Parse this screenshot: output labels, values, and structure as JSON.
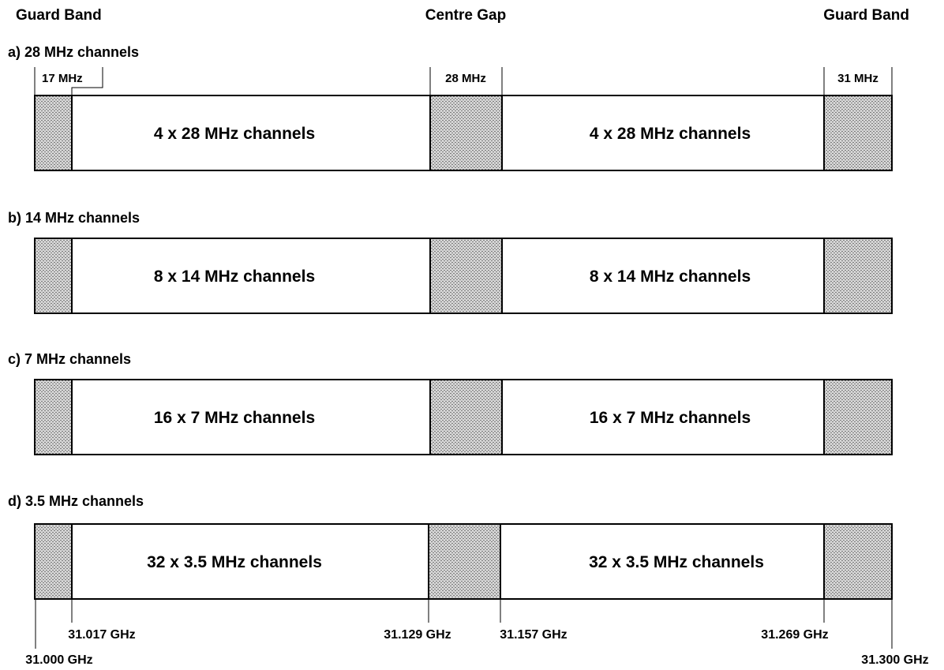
{
  "headers": {
    "guard_left": "Guard Band",
    "centre": "Centre Gap",
    "guard_right": "Guard Band"
  },
  "widths": {
    "left": "17 MHz",
    "centre": "28 MHz",
    "right": "31 MHz"
  },
  "sections": [
    {
      "title": "a) 28 MHz channels",
      "left": "4 x 28 MHz channels",
      "right": "4 x 28 MHz channels"
    },
    {
      "title": "b) 14 MHz channels",
      "left": "8 x 14 MHz channels",
      "right": "8 x 14 MHz channels"
    },
    {
      "title": "c) 7 MHz channels",
      "left": "16 x 7 MHz channels",
      "right": "16 x 7 MHz channels"
    },
    {
      "title": "d) 3.5 MHz channels",
      "left": "32 x 3.5 MHz channels",
      "right": "32 x 3.5 MHz channels"
    }
  ],
  "frequencies": {
    "f_31000": "31.000 GHz",
    "f_31017": "31.017 GHz",
    "f_31129": "31.129 GHz",
    "f_31157": "31.157 GHz",
    "f_31269": "31.269 GHz",
    "f_31300": "31.300 GHz"
  },
  "colors": {
    "hatch_bg": "#d6d6d6",
    "hatch_dot": "#7a7a7a",
    "line": "#000000"
  }
}
